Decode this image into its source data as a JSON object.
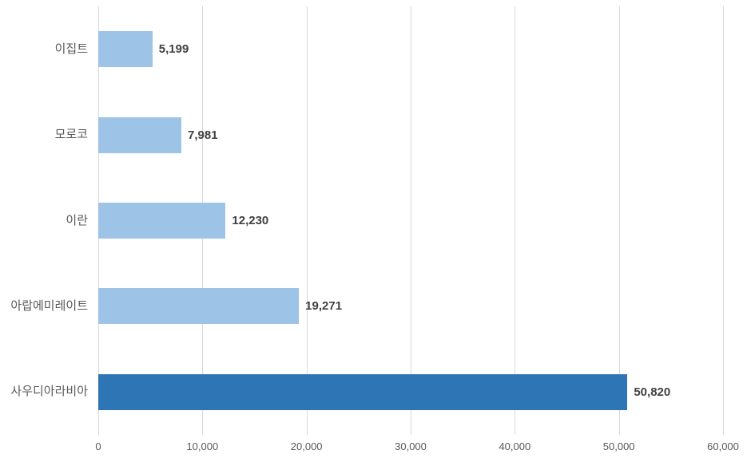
{
  "chart_data": {
    "type": "bar",
    "orientation": "horizontal",
    "title": "",
    "xlabel": "",
    "ylabel": "",
    "categories": [
      "이집트",
      "모로코",
      "이란",
      "아랍에미레이트",
      "사우디아라비아"
    ],
    "category_order": "top-to-bottom",
    "values": [
      5199,
      7981,
      12230,
      19271,
      50820
    ],
    "value_labels": [
      "5,199",
      "7,981",
      "12,230",
      "19,271",
      "50,820"
    ],
    "xlim": [
      0,
      60000
    ],
    "x_ticks": [
      0,
      10000,
      20000,
      30000,
      40000,
      50000,
      60000
    ],
    "x_tick_labels": [
      "0",
      "10,000",
      "20,000",
      "30,000",
      "40,000",
      "50,000",
      "60,000"
    ],
    "grid": true,
    "legend": false,
    "bar_colors": [
      "#9DC3E6",
      "#9DC3E6",
      "#9DC3E6",
      "#9DC3E6",
      "#2E75B6"
    ],
    "colors": {
      "bar_light": "#9DC3E6",
      "bar_highlight": "#2E75B6",
      "gridline": "#D9D9D9",
      "tick_label": "#595959",
      "category_label": "#595959",
      "value_label": "#404040",
      "background": "#FFFFFF"
    }
  }
}
